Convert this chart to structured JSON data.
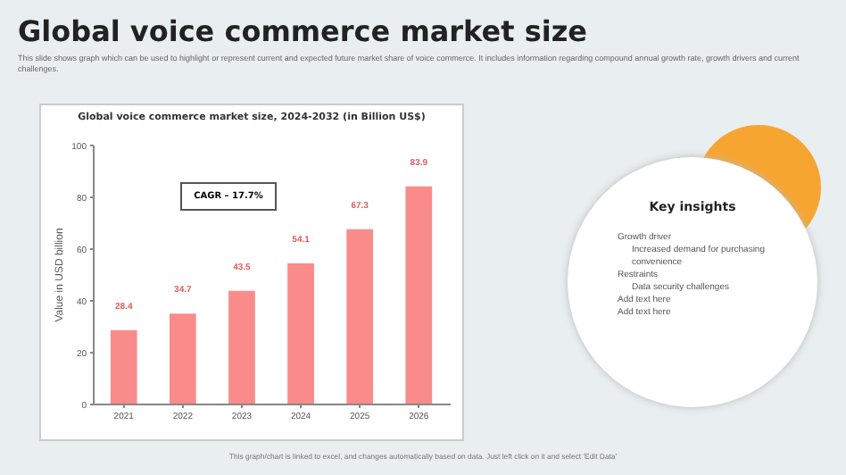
{
  "chart_data": [
    {
      "type": "bar",
      "title": "Global voice commerce market size",
      "subtitle": "This slide shows graph which can be used to highlight or represent current and expected future market share of voice commerce. It includes information regarding compound annual growth rate, growth drivers and current challenges.",
      "annotations": [
        "Global voice commerce market size, 2024-2032 (in Billion US$)",
        "CAGR – 17.7%",
        "This graph/chart is linked to excel, and changes automatically based on data. Just left click on it and select 'Edit Data'"
      ],
      "ylabel": "Value in USD billion",
      "categories": [
        "2021",
        "2022",
        "2023",
        "2024",
        "2025",
        "2026"
      ],
      "values": [
        28.4,
        34.7,
        43.5,
        54.1,
        67.3,
        83.9
      ],
      "color": "#f98c8a",
      "data_labels": true,
      "ylim": [
        0,
        100
      ],
      "yticks": [
        0,
        20,
        40,
        60,
        80,
        100
      ],
      "grid": false
    },
    {
      "type": "other",
      "title": "Key insights",
      "annotations": [
        "Growth driver",
        "Increased demand for purchasing convenience",
        "Restraints",
        "Data security challenges",
        "Add text here",
        "Add text here"
      ]
    }
  ]
}
